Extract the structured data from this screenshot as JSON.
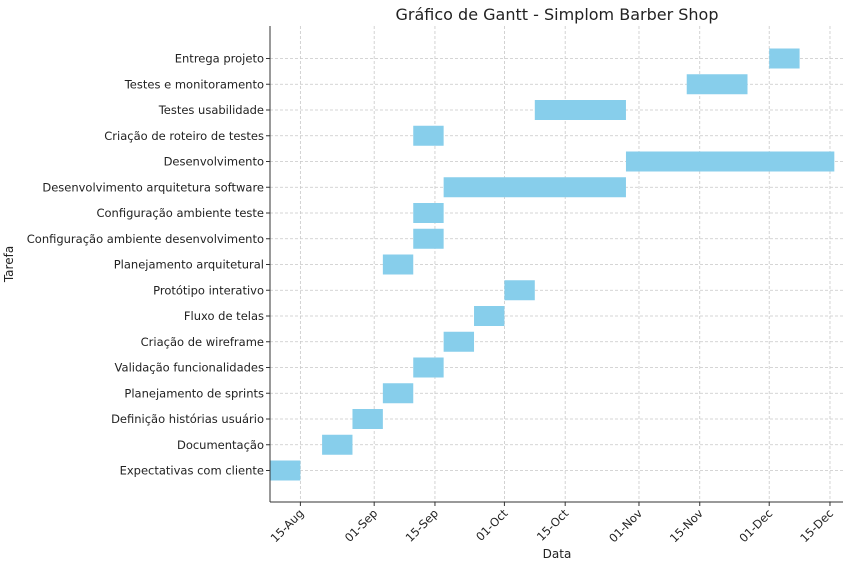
{
  "chart_data": {
    "type": "gantt",
    "title": "Gráfico de Gantt - Simplom Barber Shop",
    "xlabel": "Data",
    "ylabel": "Tarefa",
    "grid": true,
    "bar_color": "#87CEEB",
    "x_range": [
      "2023-08-08",
      "2023-12-18"
    ],
    "x_ticks": [
      {
        "date": "2023-08-15",
        "label": "15-Aug"
      },
      {
        "date": "2023-09-01",
        "label": "01-Sep"
      },
      {
        "date": "2023-09-15",
        "label": "15-Sep"
      },
      {
        "date": "2023-10-01",
        "label": "01-Oct"
      },
      {
        "date": "2023-10-15",
        "label": "15-Oct"
      },
      {
        "date": "2023-11-01",
        "label": "01-Nov"
      },
      {
        "date": "2023-11-15",
        "label": "15-Nov"
      },
      {
        "date": "2023-12-01",
        "label": "01-Dec"
      },
      {
        "date": "2023-12-15",
        "label": "15-Dec"
      }
    ],
    "tasks": [
      {
        "name": "Expectativas com cliente",
        "start": "2023-08-08",
        "end": "2023-08-15"
      },
      {
        "name": "Documentação",
        "start": "2023-08-20",
        "end": "2023-08-27"
      },
      {
        "name": "Definição histórias usuário",
        "start": "2023-08-27",
        "end": "2023-09-03"
      },
      {
        "name": "Planejamento de sprints",
        "start": "2023-09-03",
        "end": "2023-09-10"
      },
      {
        "name": "Validação funcionalidades",
        "start": "2023-09-10",
        "end": "2023-09-17"
      },
      {
        "name": "Criação de wireframe",
        "start": "2023-09-17",
        "end": "2023-09-24"
      },
      {
        "name": "Fluxo de telas",
        "start": "2023-09-24",
        "end": "2023-10-01"
      },
      {
        "name": "Protótipo interativo",
        "start": "2023-10-01",
        "end": "2023-10-08"
      },
      {
        "name": "Planejamento arquitetural",
        "start": "2023-09-03",
        "end": "2023-09-10"
      },
      {
        "name": "Configuração ambiente desenvolvimento",
        "start": "2023-09-10",
        "end": "2023-09-17"
      },
      {
        "name": "Configuração ambiente teste",
        "start": "2023-09-10",
        "end": "2023-09-17"
      },
      {
        "name": "Desenvolvimento arquitetura software",
        "start": "2023-09-17",
        "end": "2023-10-29"
      },
      {
        "name": "Desenvolvimento",
        "start": "2023-10-29",
        "end": "2023-12-16"
      },
      {
        "name": "Criação de roteiro de testes",
        "start": "2023-09-10",
        "end": "2023-09-17"
      },
      {
        "name": "Testes usabilidade",
        "start": "2023-10-08",
        "end": "2023-10-29"
      },
      {
        "name": "Testes e monitoramento",
        "start": "2023-11-12",
        "end": "2023-11-26"
      },
      {
        "name": "Entrega projeto",
        "start": "2023-12-01",
        "end": "2023-12-08"
      }
    ]
  }
}
